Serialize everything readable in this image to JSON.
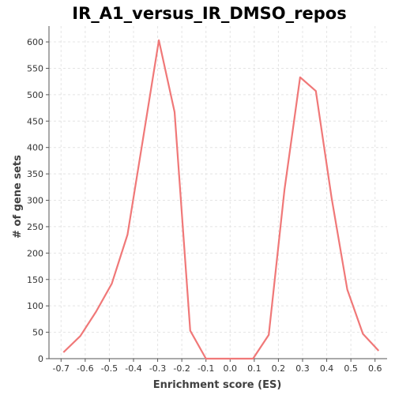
{
  "chart_data": {
    "type": "line",
    "title": "IR_A1_versus_IR_DMSO_repos",
    "xlabel": "Enrichment score (ES)",
    "ylabel": "# of gene sets",
    "xlim": [
      -0.75,
      0.65
    ],
    "ylim": [
      0,
      630
    ],
    "grid": true,
    "x_ticks": [
      "-0.7",
      "-0.6",
      "-0.5",
      "-0.4",
      "-0.3",
      "-0.2",
      "-0.1",
      "0.0",
      "0.1",
      "0.2",
      "0.3",
      "0.4",
      "0.5",
      "0.6"
    ],
    "y_ticks": [
      "0",
      "50",
      "100",
      "150",
      "200",
      "250",
      "300",
      "350",
      "400",
      "450",
      "500",
      "550",
      "600"
    ],
    "line_color": "#f07878",
    "series": [
      {
        "x": [
          -0.69,
          -0.62,
          -0.555,
          -0.49,
          -0.425,
          -0.36,
          -0.295,
          -0.23,
          -0.165,
          -0.1,
          -0.035,
          0.03,
          0.095,
          0.16,
          0.225,
          0.29,
          0.355,
          0.42,
          0.485,
          0.55,
          0.615
        ],
        "y": [
          12,
          43,
          89,
          142,
          235,
          418,
          603,
          467,
          53,
          0,
          0,
          0,
          0,
          45,
          320,
          533,
          507,
          305,
          131,
          47,
          15
        ]
      }
    ]
  }
}
